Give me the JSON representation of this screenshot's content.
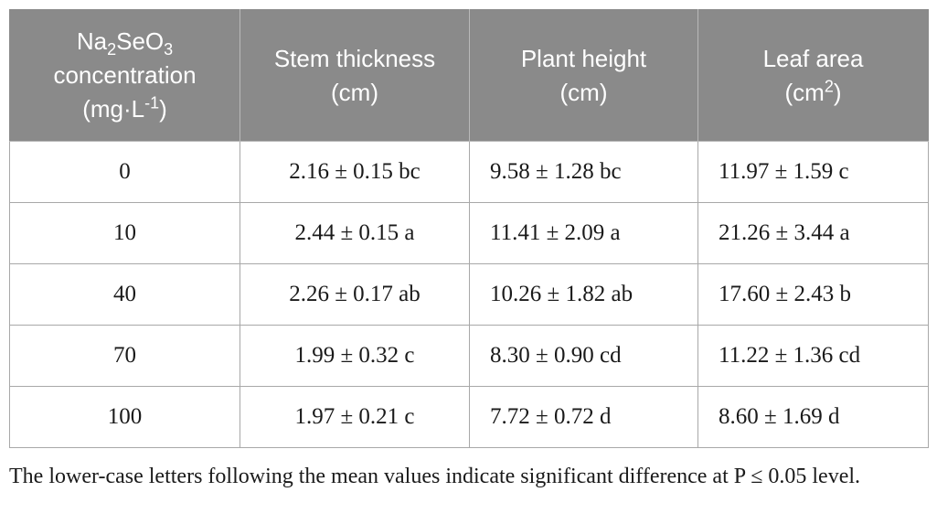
{
  "table": {
    "headers": {
      "concentration": {
        "formula_na": "Na",
        "formula_sub1": "2",
        "formula_seo": "SeO",
        "formula_sub2": "3",
        "line2": "concentration",
        "unit_open": "(mg·L",
        "unit_sup": "-1",
        "unit_close": ")"
      },
      "stem": {
        "line1": "Stem thickness",
        "line2": "(cm)"
      },
      "height": {
        "line1": "Plant height",
        "line2": "(cm)"
      },
      "leaf": {
        "line1": "Leaf area",
        "unit_open": "(cm",
        "unit_sup": "2",
        "unit_close": ")"
      }
    },
    "rows": [
      {
        "conc": "0",
        "stem": "2.16 ± 0.15 bc",
        "height": "9.58 ± 1.28 bc",
        "leaf": "11.97 ± 1.59 c"
      },
      {
        "conc": "10",
        "stem": "2.44 ± 0.15 a",
        "height": "11.41 ± 2.09 a",
        "leaf": "21.26 ± 3.44 a"
      },
      {
        "conc": "40",
        "stem": "2.26 ± 0.17 ab",
        "height": "10.26 ± 1.82 ab",
        "leaf": "17.60 ± 2.43 b"
      },
      {
        "conc": "70",
        "stem": "1.99 ± 0.32 c",
        "height": "8.30 ± 0.90 cd",
        "leaf": "11.22 ± 1.36 cd"
      },
      {
        "conc": "100",
        "stem": "1.97 ± 0.21 c",
        "height": "7.72 ± 0.72 d",
        "leaf": "8.60 ± 1.69 d"
      }
    ]
  },
  "footnote": "The lower-case letters following the mean values indicate significant difference at P ≤ 0.05 level.",
  "colors": {
    "header_bg": "#8a8a8a",
    "header_text": "#ffffff",
    "border": "#a8a8a8"
  }
}
